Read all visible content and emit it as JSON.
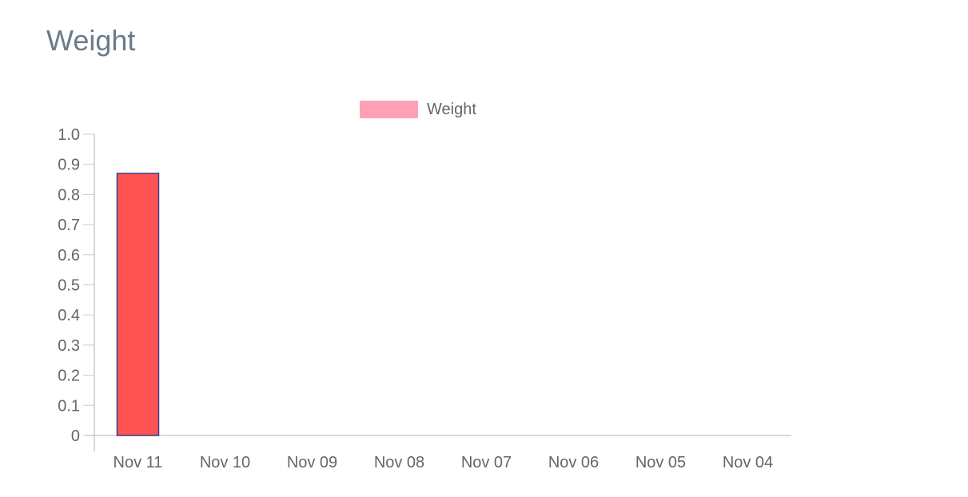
{
  "page": {
    "title": "Weight"
  },
  "colors": {
    "bar_fill": "#ff5252",
    "bar_stroke": "#3a3f8f",
    "legend_swatch": "#ffa1b5",
    "axis": "#cccccc",
    "text": "#666666"
  },
  "chart_data": {
    "type": "bar",
    "title": "",
    "xlabel": "",
    "ylabel": "",
    "categories": [
      "Nov 11",
      "Nov 10",
      "Nov 09",
      "Nov 08",
      "Nov 07",
      "Nov 06",
      "Nov 05",
      "Nov 04"
    ],
    "series": [
      {
        "name": "Weight",
        "values": [
          0.87,
          0,
          0,
          0,
          0,
          0,
          0,
          0
        ]
      }
    ],
    "ylim": [
      0,
      1.0
    ],
    "yticks": [
      "0",
      "0.1",
      "0.2",
      "0.3",
      "0.4",
      "0.5",
      "0.6",
      "0.7",
      "0.8",
      "0.9",
      "1.0"
    ],
    "grid": false,
    "legend": "top-center"
  }
}
